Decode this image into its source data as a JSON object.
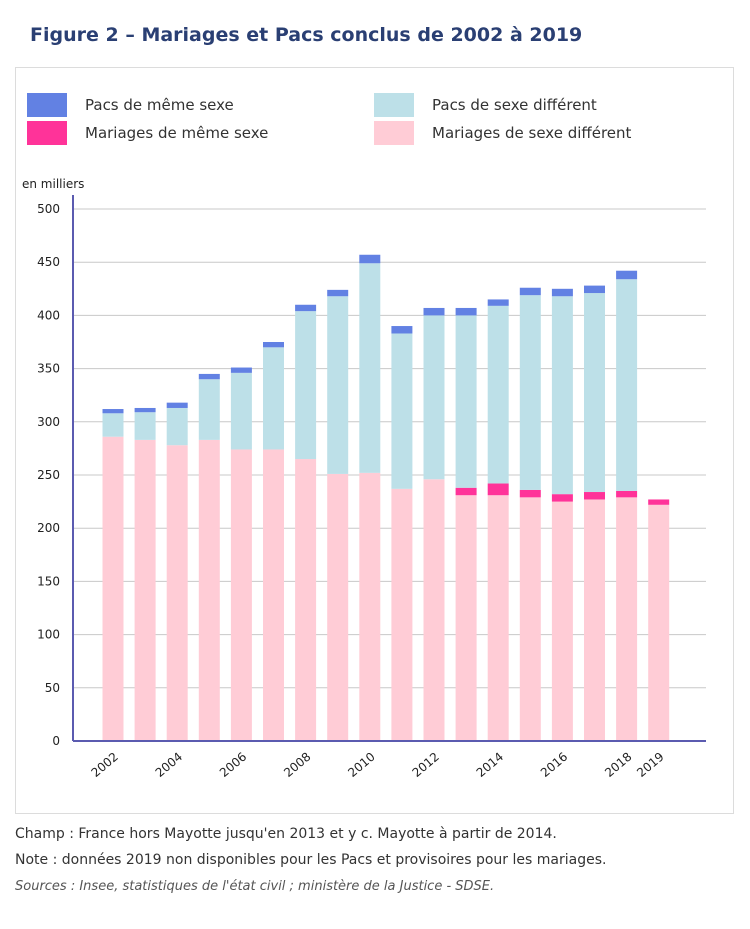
{
  "title": "Figure 2 – Mariages et Pacs conclus de 2002 à 2019",
  "notes": {
    "champ": "Champ : France hors Mayotte jusqu'en 2013 et y c. Mayotte à partir de 2014.",
    "note": "Note : données 2019 non disponibles pour les Pacs et provisoires pour les mariages.",
    "sources": "Sources : Insee, statistiques de l'état civil ; ministère de la Justice - SDSE."
  },
  "chart_data": {
    "type": "bar",
    "stacked": true,
    "ylabel": "en milliers",
    "ylim": [
      0,
      500
    ],
    "yticks": [
      0,
      50,
      100,
      150,
      200,
      250,
      300,
      350,
      400,
      450,
      500
    ],
    "grid": true,
    "legend_position": "top",
    "categories": [
      "2002",
      "2003",
      "2004",
      "2005",
      "2006",
      "2007",
      "2008",
      "2009",
      "2010",
      "2011",
      "2012",
      "2013",
      "2014",
      "2015",
      "2016",
      "2017",
      "2018",
      "2019"
    ],
    "xtick_labels": [
      "2002",
      "",
      "2004",
      "",
      "2006",
      "",
      "2008",
      "",
      "2010",
      "",
      "2012",
      "",
      "2014",
      "",
      "2016",
      "",
      "2018",
      "2019"
    ],
    "series": [
      {
        "name": "Mariages de sexe différent",
        "color": "#ffccd6",
        "values": [
          286,
          283,
          278,
          283,
          274,
          274,
          265,
          251,
          252,
          237,
          246,
          231,
          231,
          229,
          225,
          227,
          229,
          222
        ]
      },
      {
        "name": "Mariages de même sexe",
        "color": "#ff3399",
        "values": [
          0,
          0,
          0,
          0,
          0,
          0,
          0,
          0,
          0,
          0,
          0,
          7,
          11,
          7,
          7,
          7,
          6,
          5
        ]
      },
      {
        "name": "Pacs de sexe différent",
        "color": "#bde0e8",
        "values": [
          22,
          26,
          35,
          57,
          72,
          96,
          139,
          167,
          197,
          146,
          154,
          162,
          167,
          183,
          186,
          187,
          199,
          null
        ]
      },
      {
        "name": "Pacs de même sexe",
        "color": "#6281e3",
        "values": [
          4,
          4,
          5,
          5,
          5,
          5,
          6,
          6,
          8,
          7,
          7,
          7,
          6,
          7,
          7,
          7,
          8,
          null
        ]
      }
    ]
  }
}
